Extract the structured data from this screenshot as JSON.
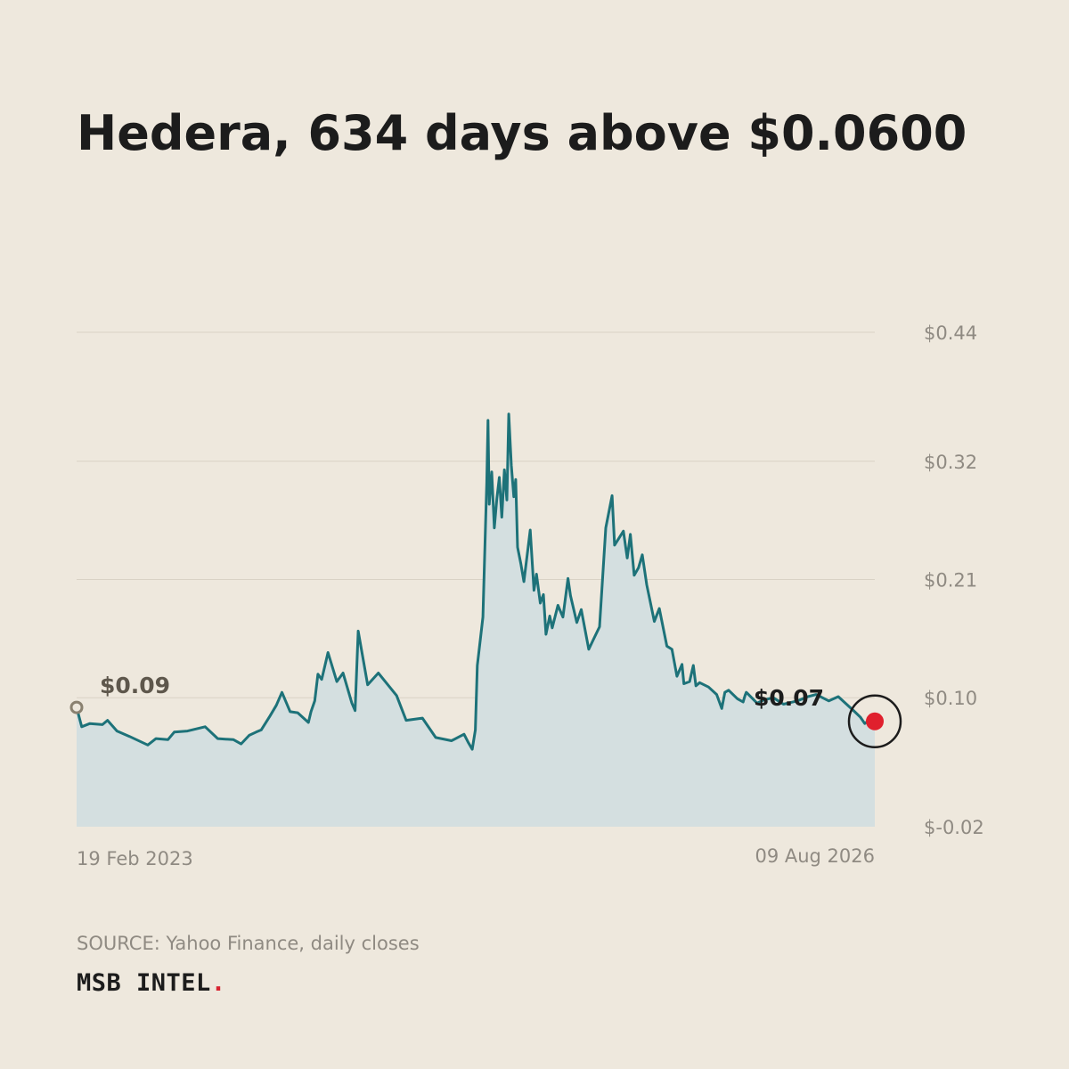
{
  "title": "Hedera, 634 days above $0.0600",
  "source": "SOURCE: Yahoo Finance, daily closes",
  "brand": {
    "name": "MSB INTEL",
    "dot": "."
  },
  "colors": {
    "background": "#eee8dd",
    "line": "#1d7279",
    "area": "#d4dfe0",
    "grid": "#d9d2c5",
    "tick_text": "#8f8a82",
    "start_marker": "#8a8170",
    "start_label": "#5e574c",
    "end_dot": "#e0202d",
    "end_ring": "#1c1c1c",
    "brand_dot": "#d8232f"
  },
  "chart_data": {
    "type": "area",
    "x_start": "19 Feb 2023",
    "x_end": "09 Aug 2026",
    "y_ticks": [
      -0.02,
      0.1,
      0.21,
      0.32,
      0.44
    ],
    "y_tick_labels": [
      "$-0.02",
      "$0.10",
      "$0.21",
      "$0.32",
      "$0.44"
    ],
    "ylim": [
      -0.02,
      0.44
    ],
    "x_labels": [
      "19 Feb 2023",
      "09 Aug 2026"
    ],
    "grid": true,
    "start_annotation": "$0.09",
    "end_annotation": "$0.07",
    "series": [
      {
        "x": [
          "2023-02-19",
          "2023-02-27",
          "2023-03-12",
          "2023-04-01",
          "2023-04-09",
          "2023-04-24",
          "2023-05-14",
          "2023-06-12",
          "2023-06-25",
          "2023-07-14",
          "2023-07-24",
          "2023-08-14",
          "2023-09-11",
          "2023-10-01",
          "2023-10-26",
          "2023-11-07",
          "2023-11-20",
          "2023-12-01",
          "2023-12-09",
          "2023-12-23",
          "2024-01-02",
          "2024-01-11",
          "2024-01-24",
          "2024-02-05",
          "2024-02-22",
          "2024-02-26",
          "2024-03-03",
          "2024-03-08",
          "2024-03-14",
          "2024-03-24",
          "2024-04-07",
          "2024-04-17",
          "2024-05-01",
          "2024-05-06",
          "2024-05-11",
          "2024-05-26",
          "2024-06-12",
          "2024-07-11",
          "2024-07-26",
          "2024-08-21",
          "2024-09-11",
          "2024-10-06",
          "2024-10-26",
          "2024-11-02",
          "2024-11-08",
          "2024-11-13",
          "2024-11-16",
          "2024-11-21",
          "2024-11-25",
          "2024-11-29",
          "2024-12-01",
          "2024-12-03",
          "2024-12-05",
          "2024-12-09",
          "2024-12-13",
          "2024-12-17",
          "2024-12-21",
          "2024-12-25",
          "2024-12-29",
          "2025-01-02",
          "2025-01-05",
          "2025-01-09",
          "2025-01-13",
          "2025-01-16",
          "2025-01-19",
          "2025-01-24",
          "2025-01-29",
          "2025-02-08",
          "2025-02-14",
          "2025-02-18",
          "2025-02-24",
          "2025-03-01",
          "2025-03-05",
          "2025-03-11",
          "2025-03-15",
          "2025-03-24",
          "2025-04-01",
          "2025-04-09",
          "2025-04-13",
          "2025-04-23",
          "2025-04-30",
          "2025-05-12",
          "2025-05-20",
          "2025-05-29",
          "2025-06-08",
          "2025-06-18",
          "2025-06-22",
          "2025-07-06",
          "2025-07-12",
          "2025-07-17",
          "2025-07-23",
          "2025-07-30",
          "2025-08-05",
          "2025-08-12",
          "2025-08-24",
          "2025-09-01",
          "2025-09-13",
          "2025-09-21",
          "2025-09-29",
          "2025-10-07",
          "2025-10-10",
          "2025-10-19",
          "2025-10-25",
          "2025-10-29",
          "2025-11-04",
          "2025-11-18",
          "2025-12-01",
          "2025-12-09",
          "2025-12-14",
          "2025-12-20",
          "2026-01-03",
          "2026-01-12",
          "2026-01-15",
          "2026-01-17",
          "2026-01-19",
          "2026-02-03",
          "2026-02-14",
          "2026-03-01",
          "2026-03-17",
          "2026-04-08",
          "2026-04-25",
          "2026-05-08",
          "2026-05-28",
          "2026-06-12",
          "2026-07-08",
          "2026-07-17",
          "2026-07-24",
          "2026-08-02",
          "2026-08-09"
        ],
        "y": [
          0.091,
          0.073,
          0.076,
          0.075,
          0.079,
          0.069,
          0.064,
          0.056,
          0.062,
          0.061,
          0.068,
          0.069,
          0.073,
          0.062,
          0.061,
          0.057,
          0.065,
          0.068,
          0.07,
          0.083,
          0.093,
          0.105,
          0.087,
          0.086,
          0.077,
          0.087,
          0.097,
          0.122,
          0.117,
          0.142,
          0.115,
          0.123,
          0.095,
          0.088,
          0.162,
          0.112,
          0.123,
          0.102,
          0.079,
          0.081,
          0.063,
          0.06,
          0.066,
          0.058,
          0.052,
          0.07,
          0.13,
          0.155,
          0.175,
          0.26,
          0.3,
          0.358,
          0.28,
          0.31,
          0.258,
          0.285,
          0.305,
          0.268,
          0.312,
          0.284,
          0.364,
          0.316,
          0.287,
          0.303,
          0.24,
          0.225,
          0.208,
          0.256,
          0.2,
          0.215,
          0.188,
          0.196,
          0.159,
          0.176,
          0.165,
          0.186,
          0.175,
          0.211,
          0.195,
          0.17,
          0.182,
          0.145,
          0.155,
          0.166,
          0.258,
          0.288,
          0.242,
          0.255,
          0.23,
          0.252,
          0.214,
          0.221,
          0.233,
          0.205,
          0.171,
          0.183,
          0.148,
          0.145,
          0.12,
          0.131,
          0.113,
          0.115,
          0.13,
          0.111,
          0.114,
          0.11,
          0.103,
          0.09,
          0.105,
          0.107,
          0.099,
          0.096,
          0.102,
          0.105,
          0.104,
          0.095,
          0.098,
          0.1,
          0.094,
          0.097,
          0.101,
          0.103,
          0.097,
          0.101,
          0.087,
          0.082,
          0.076,
          0.08,
          0.078
        ]
      }
    ]
  }
}
